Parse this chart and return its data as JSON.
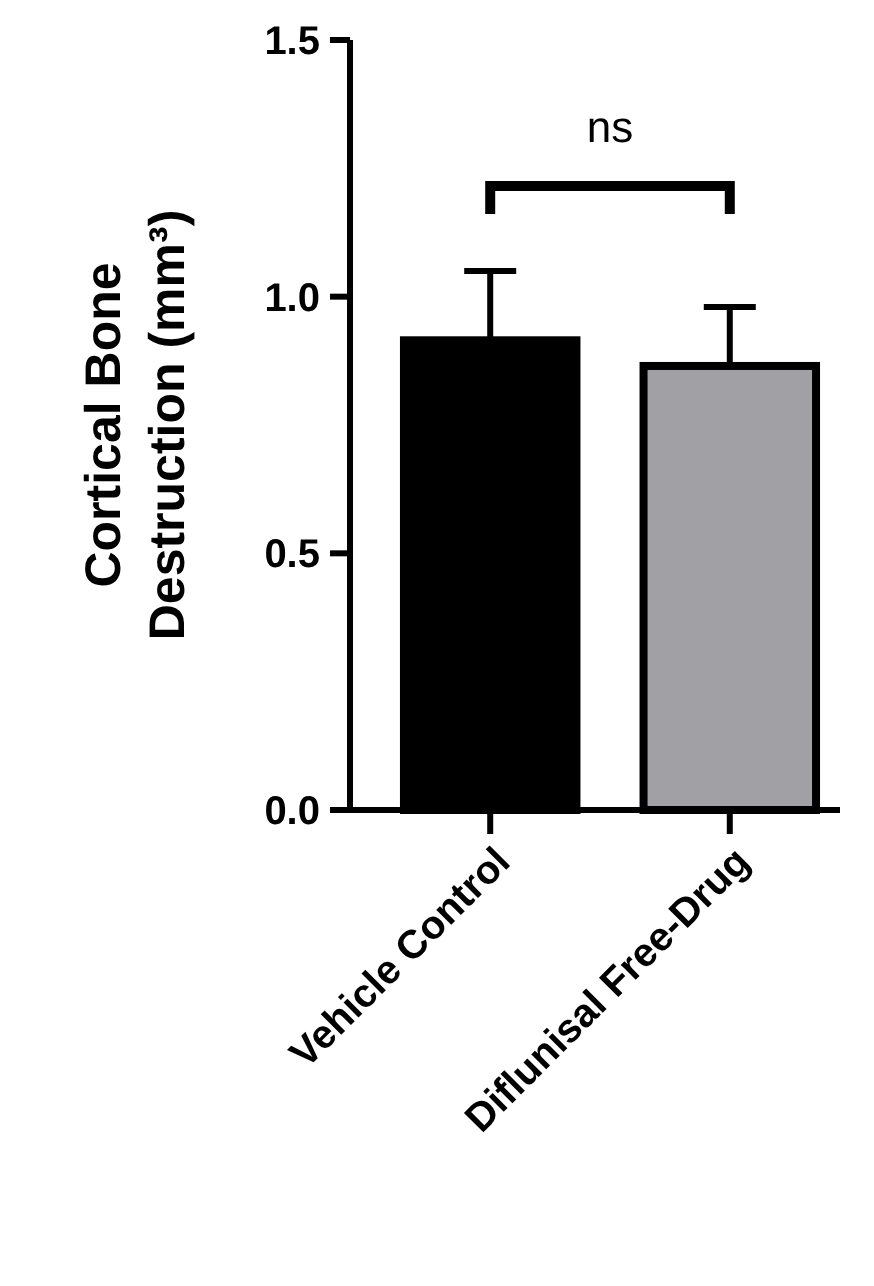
{
  "chart_data": {
    "type": "bar",
    "ylabel": "Cortical Bone Destruction (mm³)",
    "categories": [
      "Vehicle Control",
      "Diflunisal Free-Drug"
    ],
    "values": [
      0.915,
      0.865
    ],
    "colors": [
      "#000000",
      "#a0a0a5"
    ],
    "errors": [
      [
        0.915,
        1.05
      ],
      [
        0.865,
        0.98
      ]
    ],
    "ylim": [
      0,
      1.5
    ],
    "yticks": [
      {
        "value": 0,
        "label": "0.0"
      },
      {
        "value": 0.5,
        "label": "0.5"
      },
      {
        "value": 1,
        "label": "1.0"
      },
      {
        "value": 1.5,
        "label": "1.5"
      }
    ],
    "annotations": [
      "ns"
    ]
  }
}
